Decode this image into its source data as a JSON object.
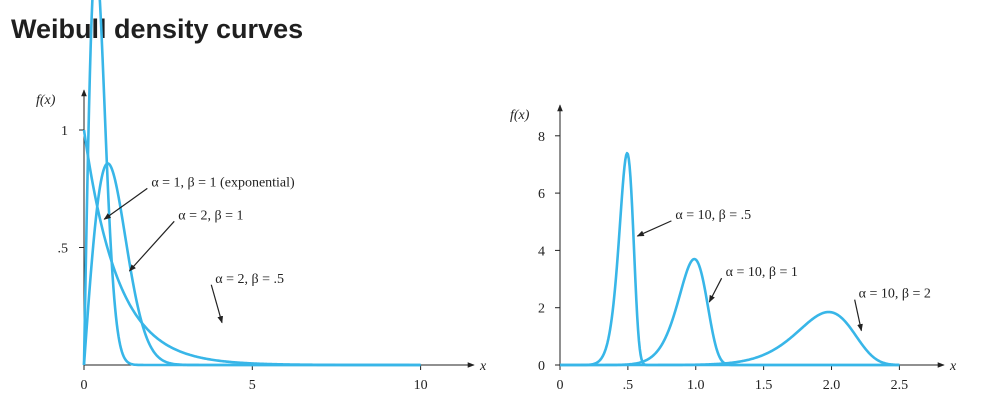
{
  "title": "Weibull density curves",
  "colors": {
    "curve": "#38b6e8",
    "axis": "#222222"
  },
  "chart_data": [
    {
      "type": "line",
      "ylabel": "f(x)",
      "xlabel": "x",
      "xlim": [
        0,
        11.2
      ],
      "ylim": [
        0,
        1.08
      ],
      "xticks": [
        0,
        5,
        10
      ],
      "xtick_labels": [
        "0",
        "5",
        "10"
      ],
      "yticks": [
        0.5,
        1
      ],
      "ytick_labels": [
        ".5",
        "1"
      ],
      "series": [
        {
          "name": "α = 1, β = 1 (exponential)",
          "alpha": 1,
          "beta": 1
        },
        {
          "name": "α = 2, β = 1",
          "alpha": 2,
          "beta": 1
        },
        {
          "name": "α = 2, β = .5",
          "alpha": 2,
          "beta": 0.5
        }
      ],
      "x_max": 10,
      "annotations": [
        {
          "text": "α = 1, β = 1 (exponential)",
          "x": 2.0,
          "y": 0.76,
          "arrow_to": [
            0.6,
            0.62
          ]
        },
        {
          "text": "α = 2, β = 1",
          "x": 2.8,
          "y": 0.62,
          "arrow_to": [
            1.35,
            0.4
          ]
        },
        {
          "text": "α = 2, β = .5",
          "x": 3.9,
          "y": 0.35,
          "arrow_to": [
            4.1,
            0.18
          ]
        }
      ]
    },
    {
      "type": "line",
      "ylabel": "f(x)",
      "xlabel": "x",
      "xlim": [
        0,
        2.85
      ],
      "ylim": [
        0,
        8.6
      ],
      "xticks": [
        0,
        0.5,
        1.0,
        1.5,
        2.0,
        2.5
      ],
      "xtick_labels": [
        "0",
        ".5",
        "1.0",
        "1.5",
        "2.0",
        "2.5"
      ],
      "yticks": [
        0,
        2,
        4,
        6,
        8
      ],
      "ytick_labels": [
        "0",
        "2",
        "4",
        "6",
        "8"
      ],
      "series": [
        {
          "name": "α = 10, β = .5",
          "alpha": 10,
          "beta": 0.5
        },
        {
          "name": "α = 10, β = 1",
          "alpha": 10,
          "beta": 1
        },
        {
          "name": "α = 10, β = 2",
          "alpha": 10,
          "beta": 2
        }
      ],
      "x_max": 2.5,
      "annotations": [
        {
          "text": "α = 10, β = .5",
          "x": 0.85,
          "y": 5.1,
          "arrow_to": [
            0.57,
            4.5
          ]
        },
        {
          "text": "α = 10, β = 1",
          "x": 1.22,
          "y": 3.1,
          "arrow_to": [
            1.1,
            2.2
          ]
        },
        {
          "text": "α = 10, β = 2",
          "x": 2.2,
          "y": 2.35,
          "arrow_to": [
            2.22,
            1.2
          ]
        }
      ]
    }
  ]
}
